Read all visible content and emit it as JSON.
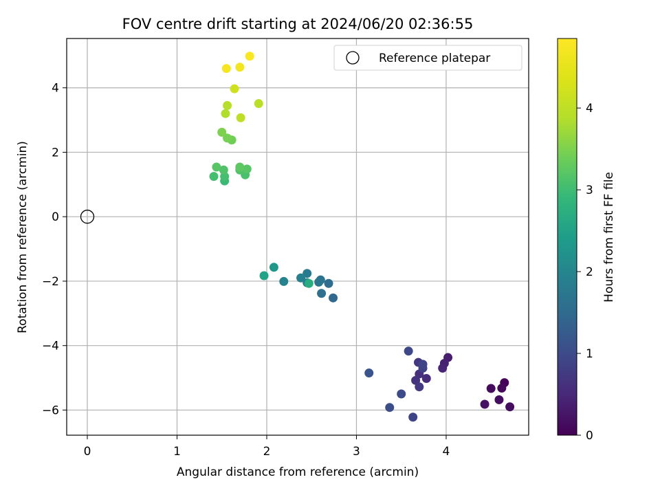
{
  "chart_data": {
    "type": "scatter",
    "title": "FOV centre drift starting at 2024/06/20 02:36:55",
    "xlabel": "Angular distance from reference (arcmin)",
    "ylabel": "Rotation from reference (arcmin)",
    "xlim": [
      -0.23,
      4.92
    ],
    "ylim": [
      -6.78,
      5.53
    ],
    "xticks": [
      0,
      1,
      2,
      3,
      4
    ],
    "yticks": [
      -6,
      -4,
      -2,
      0,
      2,
      4
    ],
    "xtick_labels": [
      "0",
      "1",
      "2",
      "3",
      "4"
    ],
    "ytick_labels": [
      "−6",
      "−4",
      "−2",
      "0",
      "2",
      "4"
    ],
    "grid": true,
    "legend": {
      "position": "top-right",
      "entries": [
        {
          "label": "Reference platepar",
          "marker": "open-circle"
        }
      ]
    },
    "reference": {
      "x": 0,
      "y": 0
    },
    "colorbar": {
      "label": "Hours from first FF file",
      "range": [
        0,
        4.85
      ],
      "ticks": [
        0,
        1,
        2,
        3,
        4
      ],
      "tick_labels": [
        "0",
        "1",
        "2",
        "3",
        "4"
      ],
      "colormap": "viridis"
    },
    "points": [
      {
        "x": 4.65,
        "y": -5.15,
        "h": 0.05
      },
      {
        "x": 4.62,
        "y": -5.32,
        "h": 0.1
      },
      {
        "x": 4.5,
        "y": -5.33,
        "h": 0.12
      },
      {
        "x": 4.71,
        "y": -5.9,
        "h": 0.15
      },
      {
        "x": 4.59,
        "y": -5.68,
        "h": 0.18
      },
      {
        "x": 4.43,
        "y": -5.82,
        "h": 0.2
      },
      {
        "x": 4.02,
        "y": -4.37,
        "h": 0.35
      },
      {
        "x": 3.98,
        "y": -4.55,
        "h": 0.4
      },
      {
        "x": 3.96,
        "y": -4.7,
        "h": 0.45
      },
      {
        "x": 3.78,
        "y": -5.02,
        "h": 0.55
      },
      {
        "x": 3.7,
        "y": -4.88,
        "h": 0.6
      },
      {
        "x": 3.66,
        "y": -5.08,
        "h": 0.65
      },
      {
        "x": 3.69,
        "y": -4.52,
        "h": 0.7
      },
      {
        "x": 3.7,
        "y": -5.28,
        "h": 0.75
      },
      {
        "x": 3.74,
        "y": -4.7,
        "h": 0.85
      },
      {
        "x": 3.74,
        "y": -4.58,
        "h": 0.9
      },
      {
        "x": 3.63,
        "y": -6.22,
        "h": 0.9
      },
      {
        "x": 3.58,
        "y": -4.17,
        "h": 0.95
      },
      {
        "x": 3.5,
        "y": -5.5,
        "h": 1.0
      },
      {
        "x": 3.37,
        "y": -5.92,
        "h": 1.05
      },
      {
        "x": 3.14,
        "y": -4.85,
        "h": 1.15
      },
      {
        "x": 2.74,
        "y": -2.52,
        "h": 1.45
      },
      {
        "x": 2.69,
        "y": -2.07,
        "h": 1.55
      },
      {
        "x": 2.61,
        "y": -2.38,
        "h": 1.6
      },
      {
        "x": 2.6,
        "y": -1.96,
        "h": 1.65
      },
      {
        "x": 2.58,
        "y": -2.03,
        "h": 1.7
      },
      {
        "x": 2.45,
        "y": -1.76,
        "h": 1.8
      },
      {
        "x": 2.45,
        "y": -2.05,
        "h": 1.85
      },
      {
        "x": 2.38,
        "y": -1.9,
        "h": 1.9
      },
      {
        "x": 2.19,
        "y": -2.01,
        "h": 1.95
      },
      {
        "x": 2.08,
        "y": -1.57,
        "h": 2.3
      },
      {
        "x": 1.97,
        "y": -1.83,
        "h": 2.5
      },
      {
        "x": 2.47,
        "y": -2.07,
        "h": 2.7
      },
      {
        "x": 1.53,
        "y": 1.11,
        "h": 2.95
      },
      {
        "x": 1.41,
        "y": 1.25,
        "h": 3.05
      },
      {
        "x": 1.53,
        "y": 1.25,
        "h": 3.05
      },
      {
        "x": 1.76,
        "y": 1.3,
        "h": 3.1
      },
      {
        "x": 1.52,
        "y": 1.45,
        "h": 3.15
      },
      {
        "x": 1.7,
        "y": 1.45,
        "h": 3.15
      },
      {
        "x": 1.44,
        "y": 1.54,
        "h": 3.2
      },
      {
        "x": 1.78,
        "y": 1.48,
        "h": 3.2
      },
      {
        "x": 1.7,
        "y": 1.54,
        "h": 3.25
      },
      {
        "x": 1.61,
        "y": 2.38,
        "h": 3.4
      },
      {
        "x": 1.56,
        "y": 2.44,
        "h": 3.45
      },
      {
        "x": 1.5,
        "y": 2.62,
        "h": 3.5
      },
      {
        "x": 1.54,
        "y": 3.2,
        "h": 3.85
      },
      {
        "x": 1.56,
        "y": 3.45,
        "h": 3.9
      },
      {
        "x": 1.91,
        "y": 3.51,
        "h": 3.95
      },
      {
        "x": 1.71,
        "y": 3.07,
        "h": 4.0
      },
      {
        "x": 1.64,
        "y": 3.97,
        "h": 4.2
      },
      {
        "x": 1.7,
        "y": 4.64,
        "h": 4.7
      },
      {
        "x": 1.55,
        "y": 4.6,
        "h": 4.75
      },
      {
        "x": 1.81,
        "y": 4.98,
        "h": 4.8
      }
    ]
  }
}
